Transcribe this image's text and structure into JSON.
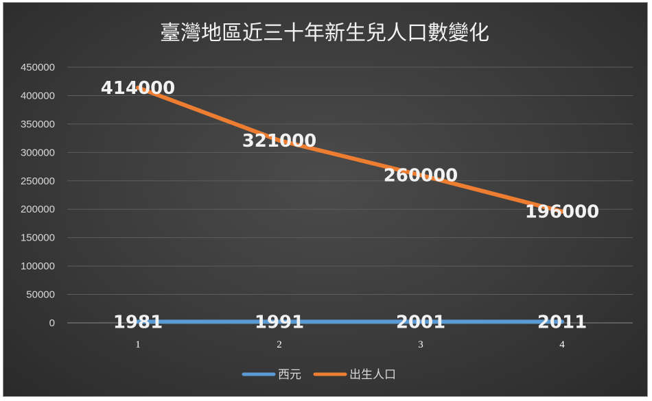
{
  "chart_data": {
    "type": "line",
    "title": "臺灣地區近三十年新生兒人口數變化",
    "categories": [
      "1",
      "2",
      "3",
      "4"
    ],
    "ylim": [
      0,
      450000
    ],
    "yticks": [
      "0",
      "50000",
      "100000",
      "150000",
      "200000",
      "250000",
      "300000",
      "350000",
      "400000",
      "450000"
    ],
    "grid": true,
    "legend_position": "bottom",
    "series": [
      {
        "name": "西元",
        "values": [
          1981,
          1991,
          2001,
          2011
        ],
        "labels": [
          "1981",
          "1991",
          "2001",
          "2011"
        ],
        "color": "#5b9bd5"
      },
      {
        "name": "出生人口",
        "values": [
          414000,
          321000,
          260000,
          196000
        ],
        "labels": [
          "414000",
          "321000",
          "260000",
          "196000"
        ],
        "color": "#ed7d31"
      }
    ]
  }
}
